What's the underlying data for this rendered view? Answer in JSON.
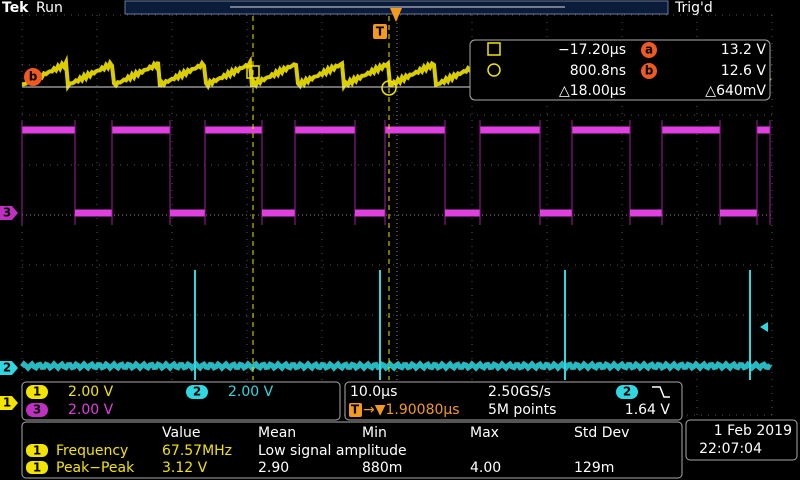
{
  "header": {
    "brand": "Tek",
    "state": "Run",
    "trigger_status": "Trig'd"
  },
  "markers": {
    "trigger": "T",
    "cursor_b": "b",
    "ch3": "3",
    "ch2": "2",
    "ch1": "1"
  },
  "cursor_readout": {
    "a": {
      "time": "−17.20µs",
      "label": "a",
      "voltage": "13.2 V"
    },
    "b": {
      "time": "800.8ns",
      "label": "b",
      "voltage": "12.6 V"
    },
    "delta": {
      "time": "△18.00µs",
      "voltage": "△640mV"
    }
  },
  "channels": [
    {
      "id": "1",
      "scale": "2.00 V"
    },
    {
      "id": "2",
      "scale": "2.00 V"
    },
    {
      "id": "3",
      "scale": "2.00 V"
    }
  ],
  "timebase": {
    "scale": "10.0µs",
    "sample_rate": "2.50GS/s",
    "trigger_channel": "2",
    "trigger_icon": "T",
    "position": "→▼1.90080µs",
    "record_length": "5M points",
    "trigger_level": "1.64 V"
  },
  "measurements": {
    "headers": [
      "Value",
      "Mean",
      "Min",
      "Max",
      "Std Dev"
    ],
    "rows": [
      {
        "channel": "1",
        "name": "Frequency",
        "value": "67.57MHz",
        "note": "Low signal amplitude"
      },
      {
        "channel": "1",
        "name": "Peak−Peak",
        "value": "3.12 V",
        "mean": "2.90",
        "min": "880m",
        "max": "4.00",
        "std_dev": "129m"
      }
    ]
  },
  "datetime": {
    "date": "1 Feb 2019",
    "time": "22:07:04"
  }
}
